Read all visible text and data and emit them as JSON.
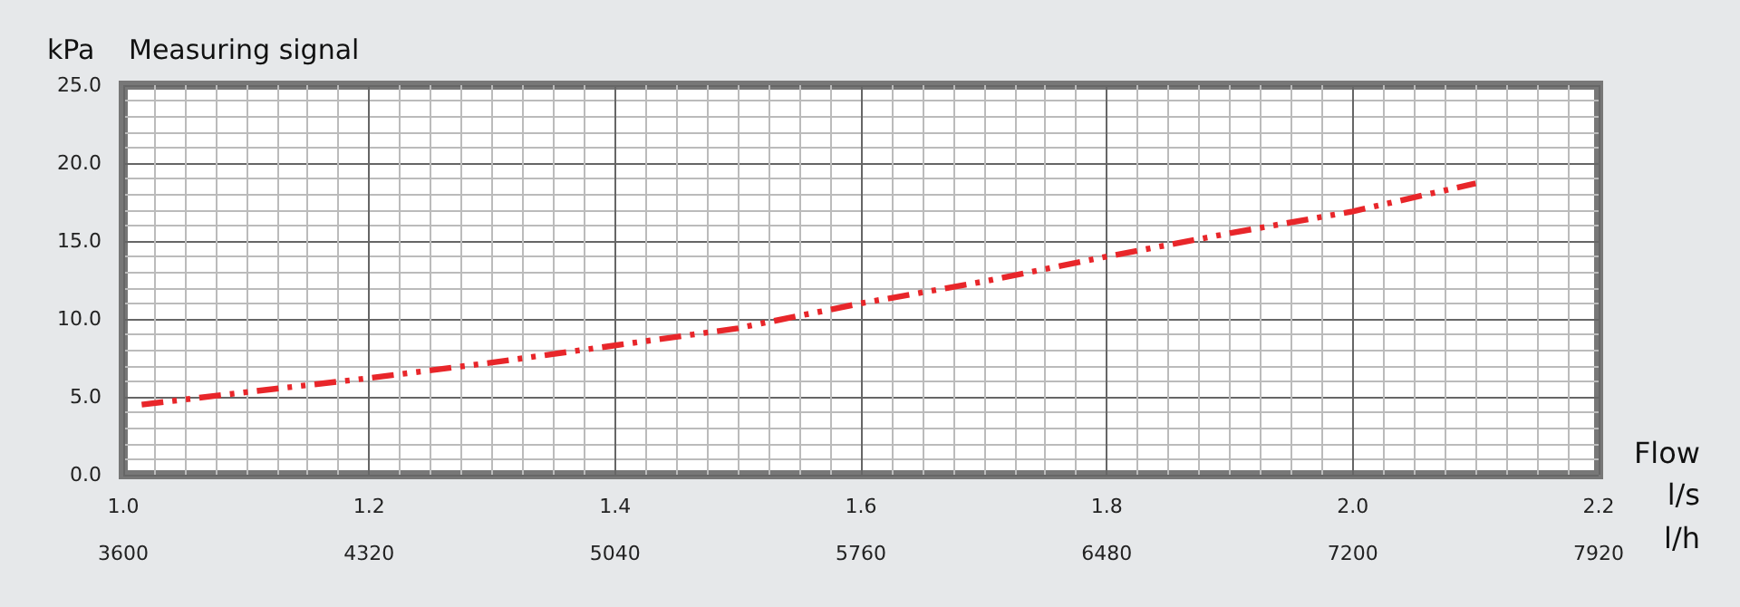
{
  "chart_data": {
    "type": "line",
    "title": "Measuring signal",
    "ylabel": "kPa",
    "xlabel": "l/s",
    "x2label": "l/h",
    "annotations": [
      "Flow"
    ],
    "x": [
      1.015,
      1.1,
      1.2,
      1.3,
      1.4,
      1.5,
      1.6,
      1.7,
      1.8,
      1.9,
      2.0,
      2.1
    ],
    "series": [
      {
        "color": "#e8262a",
        "values": [
          4.5,
          5.3,
          6.2,
          7.2,
          8.3,
          9.4,
          11.0,
          12.4,
          14.0,
          15.5,
          16.9,
          18.7
        ]
      }
    ],
    "xlim": [
      1.0,
      2.2
    ],
    "xticks": [
      {
        "value": 1.0,
        "label": "1.0"
      },
      1.2,
      1.4,
      1.6,
      1.8,
      {
        "value": 2.0,
        "label": "2.0"
      },
      2.2
    ],
    "x2lim": [
      3600,
      7920
    ],
    "x2ticks": [
      3600,
      4320,
      5040,
      5760,
      6480,
      7200,
      7920
    ],
    "ylim": [
      0,
      25
    ],
    "yticks": [
      {
        "value": 0,
        "label": "0.0"
      },
      {
        "value": 5,
        "label": "5.0"
      },
      {
        "value": 10,
        "label": "10.0"
      },
      {
        "value": 15,
        "label": "15.0"
      },
      {
        "value": 20,
        "label": "20.0"
      },
      {
        "value": 25,
        "label": "25.0"
      }
    ],
    "grid": true,
    "marker": "none",
    "line_style": "dashed"
  }
}
